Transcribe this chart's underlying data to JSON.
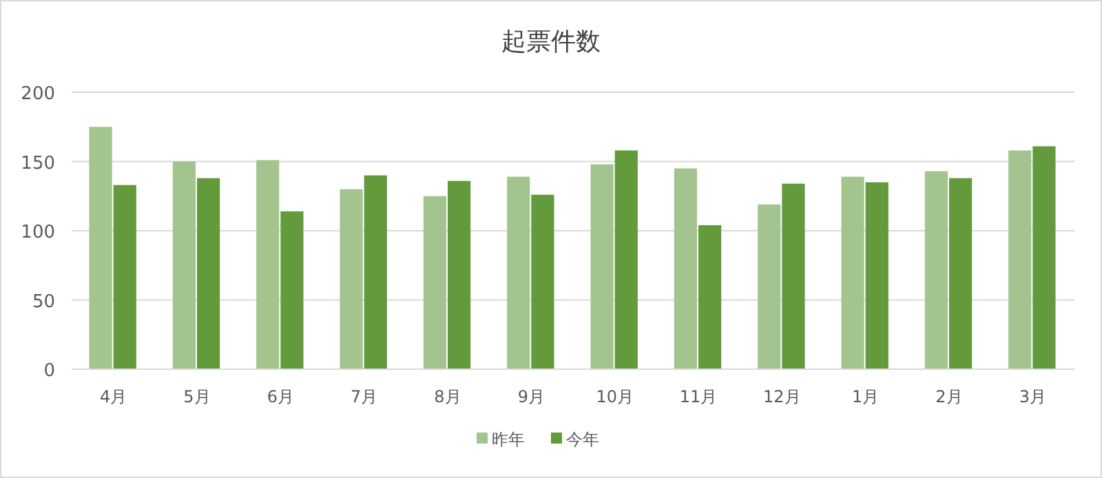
{
  "chart_data": {
    "type": "bar",
    "title": "起票件数",
    "categories": [
      "4月",
      "5月",
      "6月",
      "7月",
      "8月",
      "9月",
      "10月",
      "11月",
      "12月",
      "1月",
      "2月",
      "3月"
    ],
    "series": [
      {
        "name": "昨年",
        "color": "#a3c48f",
        "values": [
          175,
          150,
          151,
          130,
          125,
          139,
          148,
          145,
          119,
          139,
          143,
          158
        ]
      },
      {
        "name": "今年",
        "color": "#629a3c",
        "values": [
          133,
          138,
          114,
          140,
          136,
          126,
          158,
          104,
          134,
          135,
          138,
          161
        ]
      }
    ],
    "ylim": [
      0,
      200
    ],
    "yticks": [
      0,
      50,
      100,
      150,
      200
    ],
    "grid": "y",
    "legend": "bottom"
  }
}
